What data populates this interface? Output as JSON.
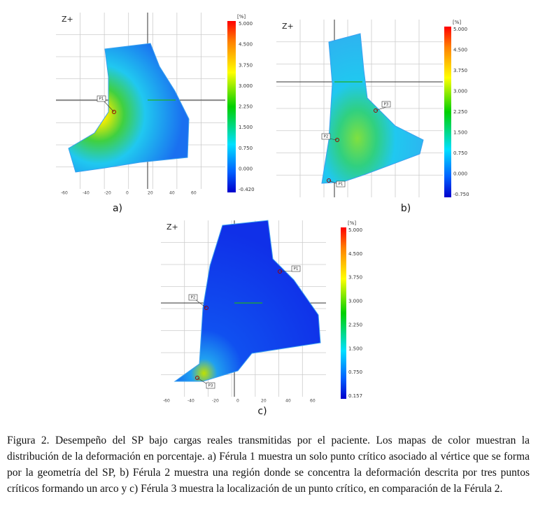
{
  "panels": [
    {
      "axis_label": "Z+",
      "unit": "[%]",
      "caption": "a)",
      "scale_labels": [
        "5.000",
        "4.500",
        "3.750",
        "3.000",
        "2.250",
        "1.500",
        "0.750",
        "0.000",
        "-0.420"
      ],
      "x_labels": [
        "-60",
        "-40",
        "-20",
        "0",
        "20",
        "40",
        "60"
      ],
      "points": [
        "P1"
      ]
    },
    {
      "axis_label": "Z+",
      "unit": "[%]",
      "caption": "b)",
      "scale_labels": [
        "5.000",
        "4.500",
        "3.750",
        "3.000",
        "2.250",
        "1.500",
        "0.750",
        "0.000",
        "-0.750"
      ],
      "x_labels": [],
      "points": [
        "P1",
        "P2",
        "P3"
      ]
    },
    {
      "axis_label": "Z+",
      "unit": "[%]",
      "caption": "c)",
      "scale_labels": [
        "5.000",
        "4.500",
        "3.750",
        "3.000",
        "2.250",
        "1.500",
        "0.750",
        "0.157"
      ],
      "x_labels": [
        "-60",
        "-40",
        "-20",
        "0",
        "20",
        "40",
        "60"
      ],
      "points": [
        "P1",
        "P2",
        "P3"
      ]
    }
  ],
  "caption": "Figura 2.  Desempeño del SP bajo cargas reales transmitidas por el paciente.  Los mapas de color muestran la distribución de la deformación en porcentaje.  a) Férula 1 muestra un solo punto crítico asociado al vértice que se forma por la geometría del SP, b) Férula 2 muestra una región donde se concentra la deformación descrita por tres puntos críticos formando un arco y c) Férula 3 muestra la localización de un punto crítico, en comparación de la Férula 2."
}
